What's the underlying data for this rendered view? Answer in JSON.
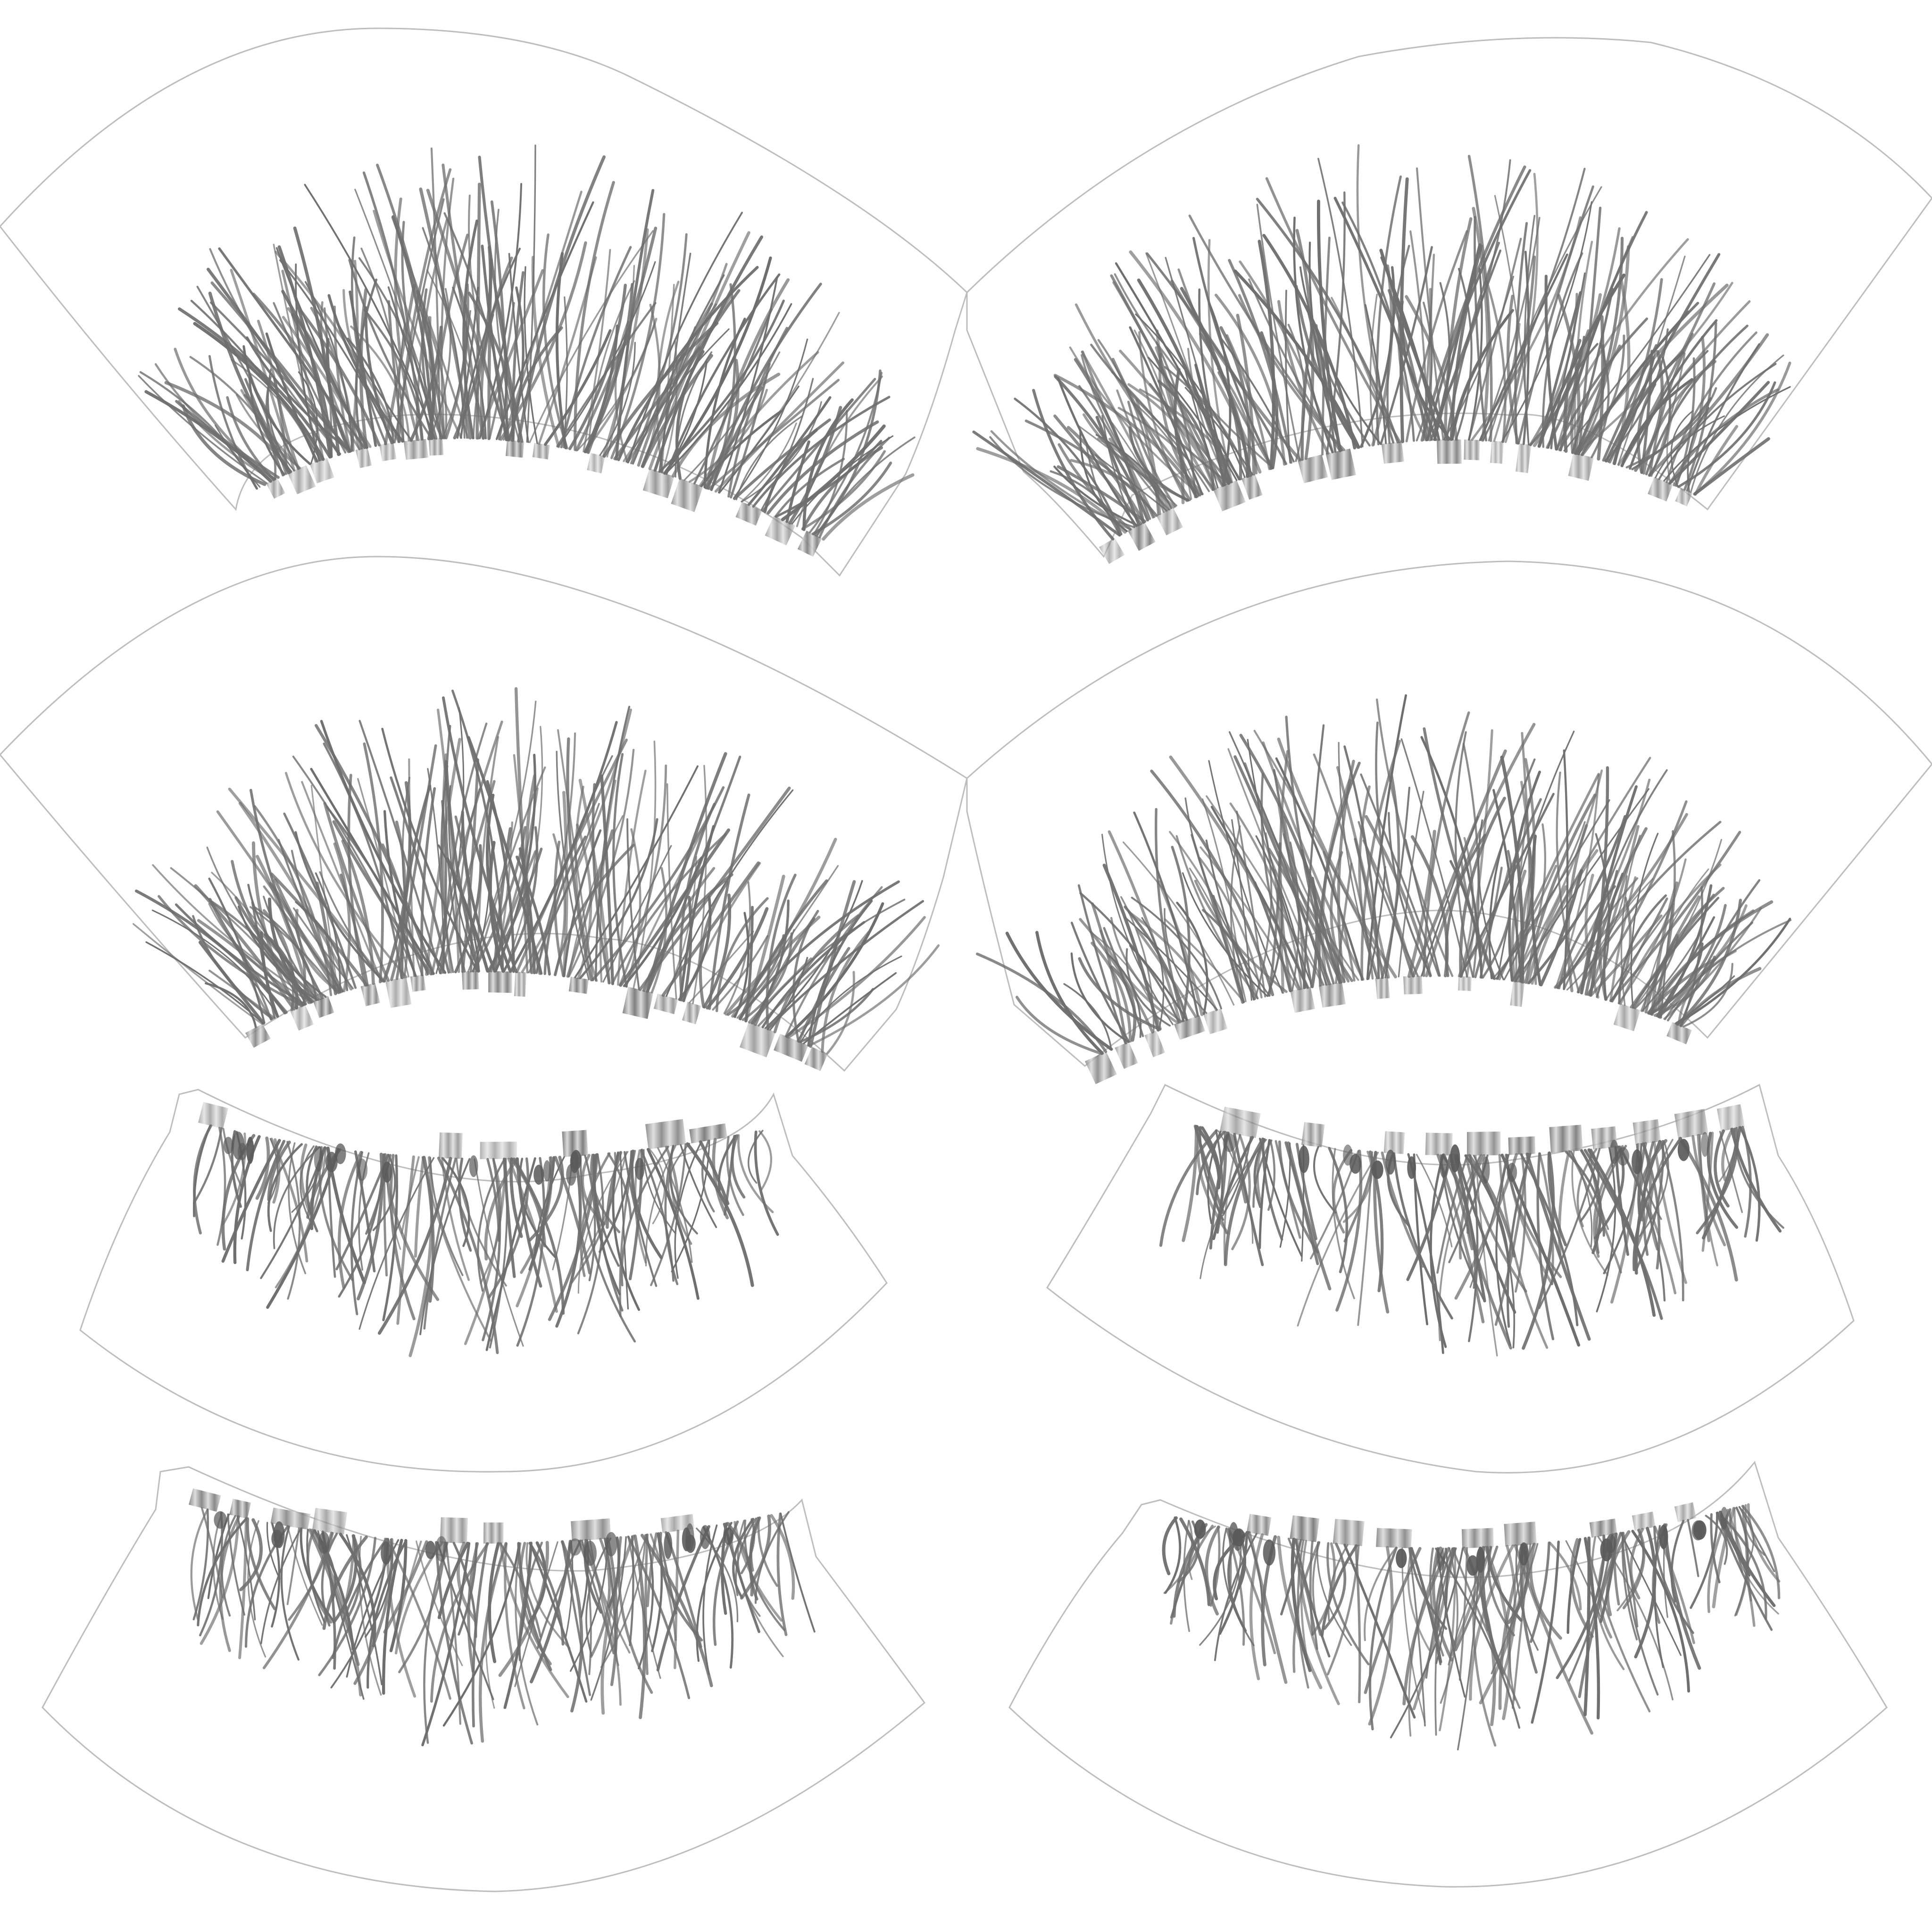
{
  "texture": {
    "background_color": "#ffffff",
    "outline_color": "#bdbdbd",
    "hair_color": "#6e6e6e",
    "band_color": "#777777",
    "band_highlight": "#d8d8d8",
    "root_color": "#5a5a5a"
  },
  "islands": [
    {
      "name": "upper-lash-left-1",
      "kind": "upper-lash",
      "side": "left",
      "density": "dense"
    },
    {
      "name": "upper-lash-right-1",
      "kind": "upper-lash",
      "side": "right",
      "density": "dense"
    },
    {
      "name": "upper-lash-left-2",
      "kind": "upper-lash",
      "side": "left",
      "density": "dense"
    },
    {
      "name": "upper-lash-right-2",
      "kind": "upper-lash",
      "side": "right",
      "density": "dense"
    },
    {
      "name": "lower-lash-left-1",
      "kind": "lower-lash",
      "side": "left",
      "density": "sparse"
    },
    {
      "name": "lower-lash-right-1",
      "kind": "lower-lash",
      "side": "right",
      "density": "sparse"
    },
    {
      "name": "lower-lash-left-2",
      "kind": "lower-lash",
      "side": "left",
      "density": "sparse"
    },
    {
      "name": "lower-lash-right-2",
      "kind": "lower-lash",
      "side": "right",
      "density": "sparse"
    }
  ]
}
